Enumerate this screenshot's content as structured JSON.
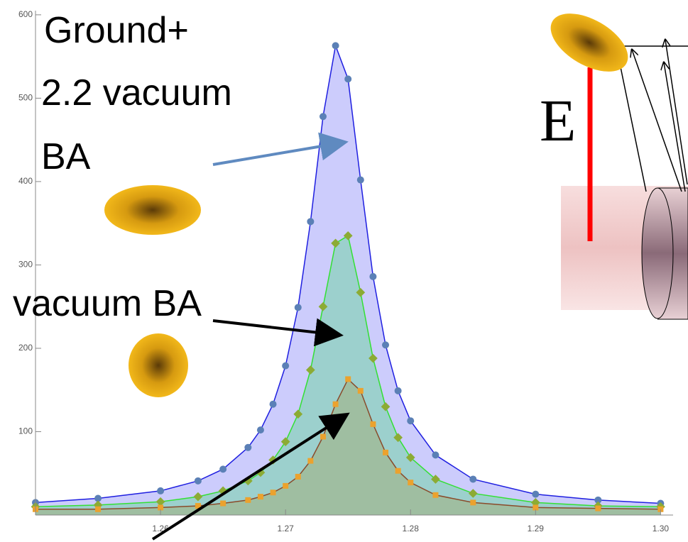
{
  "chart_data": {
    "type": "scatter",
    "x": [
      1.25,
      1.255,
      1.26,
      1.263,
      1.265,
      1.267,
      1.268,
      1.269,
      1.27,
      1.271,
      1.272,
      1.273,
      1.274,
      1.275,
      1.276,
      1.277,
      1.278,
      1.279,
      1.28,
      1.282,
      1.285,
      1.29,
      1.295,
      1.3
    ],
    "series": [
      {
        "color": "#5b80b6",
        "line_color": "#1f1fe0",
        "fill": "rgba(170,170,250,0.6)",
        "values": [
          15,
          20,
          29,
          41,
          55,
          81,
          102,
          133,
          179,
          249,
          352,
          478,
          563,
          523,
          402,
          286,
          204,
          149,
          113,
          72,
          43,
          25,
          18,
          14
        ]
      },
      {
        "color": "#8cab34",
        "line_color": "#33e033",
        "fill": "rgba(140,210,190,0.75)",
        "values": [
          10,
          12,
          16,
          22,
          29,
          41,
          51,
          66,
          88,
          121,
          174,
          250,
          326,
          335,
          267,
          188,
          130,
          93,
          69,
          43,
          26,
          15,
          11,
          10
        ]
      },
      {
        "color": "#eba22e",
        "line_color": "#8a4a2a",
        "fill": "rgba(160,185,150,0.8)",
        "values": [
          7,
          7,
          9,
          11,
          14,
          18,
          22,
          27,
          35,
          46,
          65,
          94,
          133,
          163,
          149,
          109,
          75,
          53,
          39,
          24,
          15,
          9,
          8,
          7
        ]
      }
    ],
    "xlim": [
      1.25,
      1.301
    ],
    "ylim": [
      0,
      605
    ],
    "xticks": [
      1.26,
      1.27,
      1.28,
      1.29,
      {
        "value": 1.3,
        "label": "1.30"
      }
    ],
    "yticks": [
      100,
      200,
      300,
      400,
      500,
      600
    ],
    "annotations": [
      "Ground+",
      "2.2 vacuum",
      "BA",
      "vacuum BA",
      "E"
    ]
  }
}
